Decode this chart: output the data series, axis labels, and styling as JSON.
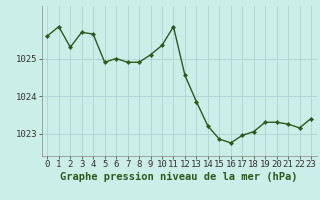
{
  "x": [
    0,
    1,
    2,
    3,
    4,
    5,
    6,
    7,
    8,
    9,
    10,
    11,
    12,
    13,
    14,
    15,
    16,
    17,
    18,
    19,
    20,
    21,
    22,
    23
  ],
  "y": [
    1025.6,
    1025.85,
    1025.3,
    1025.7,
    1025.65,
    1024.9,
    1025.0,
    1024.9,
    1024.9,
    1025.1,
    1025.35,
    1025.85,
    1024.55,
    1023.85,
    1023.2,
    1022.85,
    1022.75,
    1022.95,
    1023.05,
    1023.3,
    1023.3,
    1023.25,
    1023.15,
    1023.4
  ],
  "line_color": "#2d5a1b",
  "marker": "D",
  "marker_size": 2.2,
  "bg_color": "#cceee8",
  "grid_color": "#aacccc",
  "xlabel": "Graphe pression niveau de la mer (hPa)",
  "xlabel_fontsize": 7.5,
  "yticks": [
    1023,
    1024,
    1025
  ],
  "xtick_labels": [
    "0",
    "1",
    "2",
    "3",
    "4",
    "5",
    "6",
    "7",
    "8",
    "9",
    "10",
    "11",
    "12",
    "13",
    "14",
    "15",
    "16",
    "17",
    "18",
    "19",
    "20",
    "21",
    "22",
    "23"
  ],
  "ylim": [
    1022.4,
    1026.4
  ],
  "xlim": [
    -0.5,
    23.5
  ],
  "tick_fontsize": 6.5,
  "linewidth": 1.0
}
